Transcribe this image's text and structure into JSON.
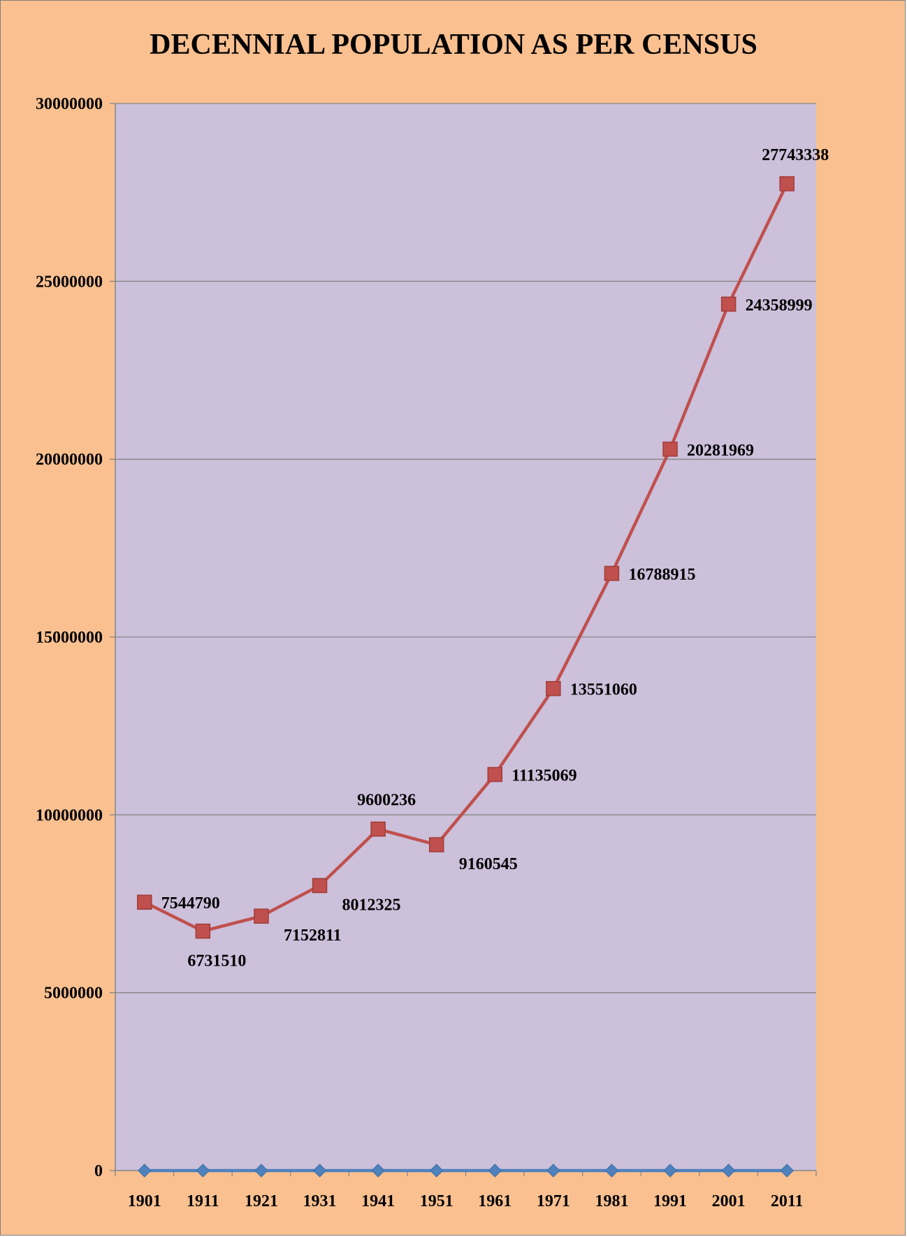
{
  "chart_data": {
    "type": "line",
    "title": "DECENNIAL POPULATION AS PER CENSUS",
    "xlabel": "",
    "ylabel": "",
    "categories": [
      "1901",
      "1911",
      "1921",
      "1931",
      "1941",
      "1951",
      "1961",
      "1971",
      "1981",
      "1991",
      "2001",
      "2011"
    ],
    "series": [
      {
        "values": [
          7544790,
          6731510,
          7152811,
          8012325,
          9600236,
          9160545,
          11135069,
          13551060,
          16788915,
          20281969,
          24358999,
          27743338
        ],
        "color": "#c0504d",
        "marker": "square",
        "data_labels": [
          "7544790",
          "6731510",
          "7152811",
          "8012325",
          "9600236",
          "9160545",
          "11135069",
          "13551060",
          "16788915",
          "20281969",
          "24358999",
          "27743338"
        ]
      },
      {
        "values": [
          0,
          0,
          0,
          0,
          0,
          0,
          0,
          0,
          0,
          0,
          0,
          0
        ],
        "color": "#4f81bd",
        "marker": "diamond"
      }
    ],
    "ylim": [
      0,
      30000000
    ],
    "yticks": [
      0,
      5000000,
      10000000,
      15000000,
      20000000,
      25000000,
      30000000
    ],
    "ytick_labels": [
      "0",
      "5000000",
      "10000000",
      "15000000",
      "20000000",
      "25000000",
      "30000000"
    ],
    "grid": true,
    "legend": "none",
    "plot_background": "#ccc0da",
    "chart_background": "#fac090"
  }
}
